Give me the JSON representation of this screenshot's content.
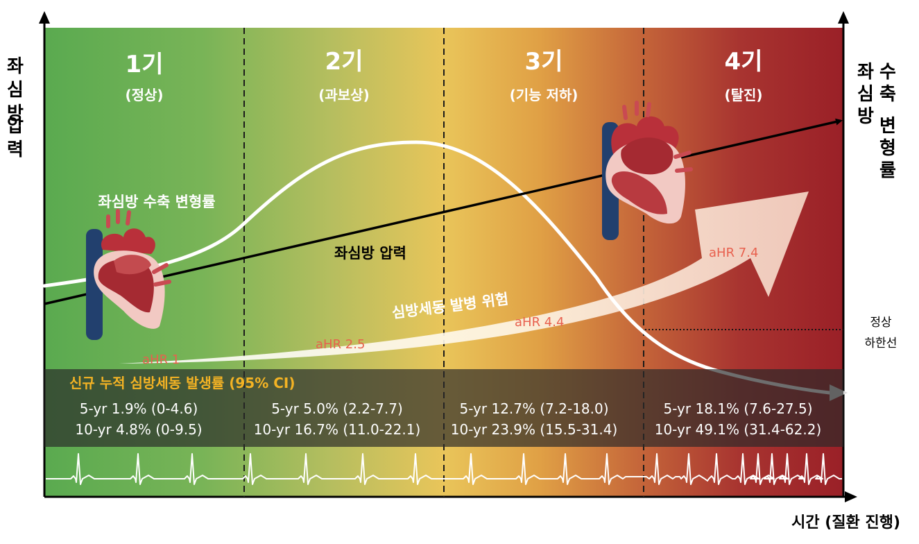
{
  "axes": {
    "left_label": "좌심방 압력",
    "right_label": "좌심방 수축 변형률",
    "x_label": "시간 (질환 진행)",
    "normal_lower_limit": "정상 하한선"
  },
  "stages": [
    {
      "title": "1기",
      "subtitle": "(정상)",
      "ahr": "aHR 1",
      "rate_5yr": "5-yr 1.9% (0-4.6)",
      "rate_10yr": "10-yr 4.8% (0-9.5)"
    },
    {
      "title": "2기",
      "subtitle": "(과보상)",
      "ahr": "aHR 2.5",
      "rate_5yr": "5-yr 5.0% (2.2-7.7)",
      "rate_10yr": "10-yr 16.7% (11.0-22.1)"
    },
    {
      "title": "3기",
      "subtitle": "(기능 저하)",
      "ahr": "aHR 4.4",
      "rate_5yr": "5-yr 12.7% (7.2-18.0)",
      "rate_10yr": "10-yr 23.9% (15.5-31.4)"
    },
    {
      "title": "4기",
      "subtitle": "(탈진)",
      "ahr": "aHR 7.4",
      "rate_5yr": "5-yr 18.1% (7.6-27.5)",
      "rate_10yr": "10-yr 49.1% (31.4-62.2)"
    }
  ],
  "curves": {
    "strain_label": "좌심방 수축 변형률",
    "pressure_label": "좌심방 압력",
    "risk_label": "심방세동 발병 위험"
  },
  "band": {
    "title": "신규 누적 심방세동 발생률 (95% CI)"
  },
  "colors": {
    "green": "#62ab52",
    "yellow": "#e8c456",
    "orange": "#d9823a",
    "red": "#9b2226",
    "band_title": "#f4b324",
    "ahr": "#e8604e"
  },
  "icons": [
    "heart-icon-normal",
    "heart-icon-enlarged"
  ]
}
